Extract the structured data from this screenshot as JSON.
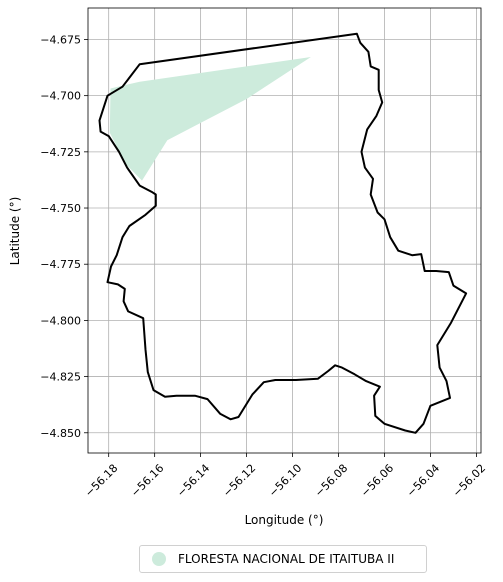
{
  "chart_data": {
    "type": "map",
    "xlabel": "Longitude (°)",
    "ylabel": "Latitude (°)",
    "xlim": [
      -56.189,
      -56.018
    ],
    "ylim": [
      -4.859,
      -4.661
    ],
    "xticks": [
      -56.18,
      -56.16,
      -56.14,
      -56.12,
      -56.1,
      -56.08,
      -56.06,
      -56.04,
      -56.02
    ],
    "xtick_labels": [
      "−56.18",
      "−56.16",
      "−56.14",
      "−56.12",
      "−56.10",
      "−56.08",
      "−56.06",
      "−56.04",
      "−56.02"
    ],
    "yticks": [
      -4.675,
      -4.7,
      -4.725,
      -4.75,
      -4.775,
      -4.8,
      -4.825,
      -4.85
    ],
    "ytick_labels": [
      "−4.675",
      "−4.700",
      "−4.725",
      "−4.750",
      "−4.775",
      "−4.800",
      "−4.825",
      "−4.850"
    ],
    "grid": true,
    "legend_position": "bottom-center",
    "legend": [
      {
        "label": "FLORESTA NACIONAL DE ITAITUBA II",
        "color": "#cdebdc"
      }
    ],
    "protected_area": {
      "name": "FLORESTA NACIONAL DE ITAITUBA II",
      "color": "#cdebdc",
      "lonlat": [
        [
          -56.1665,
          -4.6938
        ],
        [
          -56.092,
          -4.6828
        ],
        [
          -56.12,
          -4.7015
        ],
        [
          -56.1545,
          -4.7198
        ],
        [
          -56.1655,
          -4.7378
        ],
        [
          -56.1725,
          -4.7305
        ],
        [
          -56.1795,
          -4.7165
        ],
        [
          -56.1792,
          -4.6968
        ],
        [
          -56.1665,
          -4.6938
        ]
      ]
    },
    "boundary": {
      "color": "#000000",
      "lonlat": [
        [
          -56.1665,
          -4.686
        ],
        [
          -56.072,
          -4.6725
        ],
        [
          -56.0705,
          -4.6765
        ],
        [
          -56.067,
          -4.6805
        ],
        [
          -56.066,
          -4.687
        ],
        [
          -56.0625,
          -4.6885
        ],
        [
          -56.0625,
          -4.6975
        ],
        [
          -56.061,
          -4.703
        ],
        [
          -56.0635,
          -4.709
        ],
        [
          -56.0675,
          -4.715
        ],
        [
          -56.07,
          -4.725
        ],
        [
          -56.0685,
          -4.732
        ],
        [
          -56.065,
          -4.737
        ],
        [
          -56.066,
          -4.744
        ],
        [
          -56.063,
          -4.752
        ],
        [
          -56.06,
          -4.755
        ],
        [
          -56.0575,
          -4.763
        ],
        [
          -56.054,
          -4.769
        ],
        [
          -56.048,
          -4.771
        ],
        [
          -56.044,
          -4.7705
        ],
        [
          -56.0425,
          -4.778
        ],
        [
          -56.0375,
          -4.778
        ],
        [
          -56.032,
          -4.7785
        ],
        [
          -56.03,
          -4.7845
        ],
        [
          -56.0245,
          -4.788
        ],
        [
          -56.031,
          -4.801
        ],
        [
          -56.037,
          -4.811
        ],
        [
          -56.036,
          -4.821
        ],
        [
          -56.033,
          -4.827
        ],
        [
          -56.0315,
          -4.8345
        ],
        [
          -56.04,
          -4.838
        ],
        [
          -56.043,
          -4.846
        ],
        [
          -56.0465,
          -4.85
        ],
        [
          -56.051,
          -4.849
        ],
        [
          -56.06,
          -4.846
        ],
        [
          -56.064,
          -4.8425
        ],
        [
          -56.0645,
          -4.8335
        ],
        [
          -56.062,
          -4.8295
        ],
        [
          -56.068,
          -4.827
        ],
        [
          -56.073,
          -4.824
        ],
        [
          -56.0785,
          -4.821
        ],
        [
          -56.0815,
          -4.82
        ],
        [
          -56.0845,
          -4.8225
        ],
        [
          -56.089,
          -4.826
        ],
        [
          -56.0985,
          -4.8265
        ],
        [
          -56.1075,
          -4.8265
        ],
        [
          -56.1125,
          -4.8275
        ],
        [
          -56.1175,
          -4.833
        ],
        [
          -56.1235,
          -4.843
        ],
        [
          -56.127,
          -4.844
        ],
        [
          -56.1315,
          -4.8415
        ],
        [
          -56.137,
          -4.835
        ],
        [
          -56.1425,
          -4.8335
        ],
        [
          -56.1505,
          -4.8335
        ],
        [
          -56.1555,
          -4.834
        ],
        [
          -56.1605,
          -4.831
        ],
        [
          -56.163,
          -4.823
        ],
        [
          -56.164,
          -4.813
        ],
        [
          -56.165,
          -4.799
        ],
        [
          -56.1715,
          -4.796
        ],
        [
          -56.1735,
          -4.7915
        ],
        [
          -56.173,
          -4.786
        ],
        [
          -56.176,
          -4.784
        ],
        [
          -56.1805,
          -4.783
        ],
        [
          -56.179,
          -4.776
        ],
        [
          -56.1765,
          -4.771
        ],
        [
          -56.174,
          -4.763
        ],
        [
          -56.171,
          -4.758
        ],
        [
          -56.164,
          -4.753
        ],
        [
          -56.1595,
          -4.749
        ],
        [
          -56.1595,
          -4.744
        ],
        [
          -56.161,
          -4.743
        ],
        [
          -56.1665,
          -4.74
        ],
        [
          -56.172,
          -4.732
        ],
        [
          -56.1755,
          -4.725
        ],
        [
          -56.18,
          -4.718
        ],
        [
          -56.1835,
          -4.716
        ],
        [
          -56.184,
          -4.711
        ],
        [
          -56.1805,
          -4.7
        ],
        [
          -56.174,
          -4.696
        ],
        [
          -56.1665,
          -4.686
        ]
      ]
    }
  },
  "legend_ui": {
    "label": "FLORESTA NACIONAL DE ITAITUBA II",
    "swatch_color": "#cdebdc"
  }
}
